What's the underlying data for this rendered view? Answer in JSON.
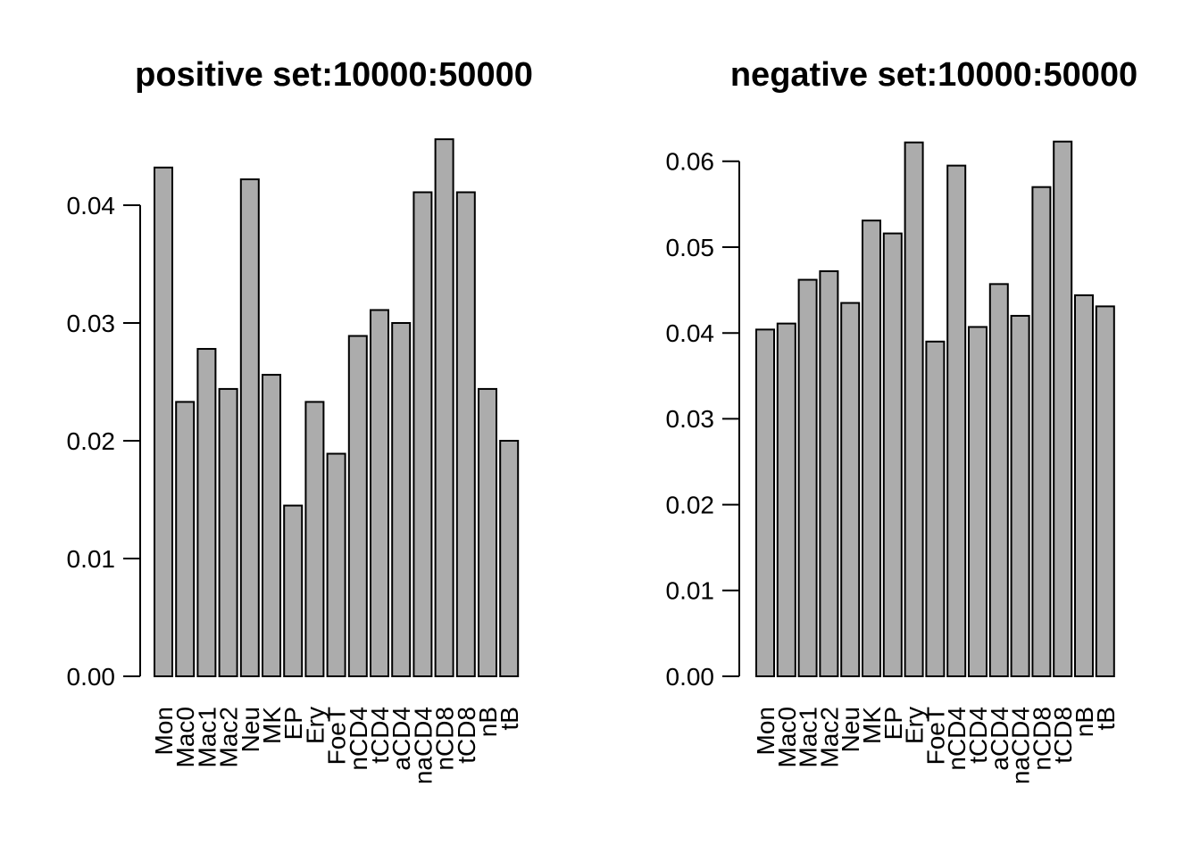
{
  "figure": {
    "background": "#ffffff",
    "text_color": "#000000"
  },
  "chart_data": [
    {
      "type": "bar",
      "title": "positive set:10000:50000",
      "categories": [
        "Mon",
        "Mac0",
        "Mac1",
        "Mac2",
        "Neu",
        "MK",
        "EP",
        "Ery",
        "FoeT",
        "nCD4",
        "tCD4",
        "aCD4",
        "naCD4",
        "nCD8",
        "tCD8",
        "nB",
        "tB"
      ],
      "values": [
        0.0432,
        0.0233,
        0.0278,
        0.0244,
        0.0422,
        0.0256,
        0.0145,
        0.0233,
        0.0189,
        0.0289,
        0.0311,
        0.03,
        0.0411,
        0.0456,
        0.0411,
        0.0244,
        0.02
      ],
      "xlabel": "",
      "ylabel": "",
      "ylim": [
        0,
        0.04
      ],
      "ytick_step": 0.01,
      "ytick_labels": [
        "0.00",
        "0.01",
        "0.02",
        "0.03",
        "0.04"
      ],
      "grid": false,
      "legend_position": "none",
      "bar_fill": "#ACACAC",
      "bar_stroke": "#000000"
    },
    {
      "type": "bar",
      "title": "negative set:10000:50000",
      "categories": [
        "Mon",
        "Mac0",
        "Mac1",
        "Mac2",
        "Neu",
        "MK",
        "EP",
        "Ery",
        "FoeT",
        "nCD4",
        "tCD4",
        "aCD4",
        "naCD4",
        "nCD8",
        "tCD8",
        "nB",
        "tB"
      ],
      "values": [
        0.0404,
        0.0411,
        0.0462,
        0.0472,
        0.0435,
        0.0531,
        0.0516,
        0.0622,
        0.039,
        0.0595,
        0.0407,
        0.0457,
        0.042,
        0.057,
        0.0623,
        0.0444,
        0.0431
      ],
      "xlabel": "",
      "ylabel": "",
      "ylim": [
        0,
        0.06
      ],
      "ytick_step": 0.01,
      "ytick_labels": [
        "0.00",
        "0.01",
        "0.02",
        "0.03",
        "0.04",
        "0.05",
        "0.06"
      ],
      "grid": false,
      "legend_position": "none",
      "bar_fill": "#ACACAC",
      "bar_stroke": "#000000"
    }
  ]
}
